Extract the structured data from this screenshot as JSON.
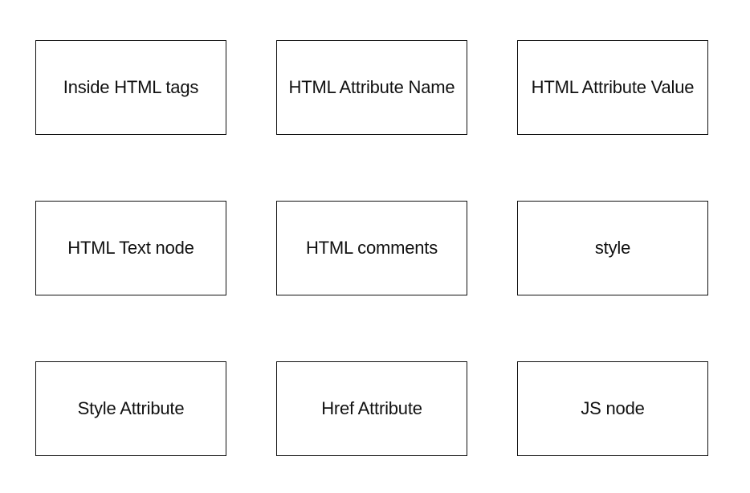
{
  "nodes": [
    {
      "label": "Inside HTML tags"
    },
    {
      "label": "HTML Attribute Name"
    },
    {
      "label": "HTML Attribute Value"
    },
    {
      "label": "HTML Text node"
    },
    {
      "label": "HTML comments"
    },
    {
      "label": "style"
    },
    {
      "label": "Style Attribute"
    },
    {
      "label": "Href Attribute"
    },
    {
      "label": "JS node"
    }
  ]
}
